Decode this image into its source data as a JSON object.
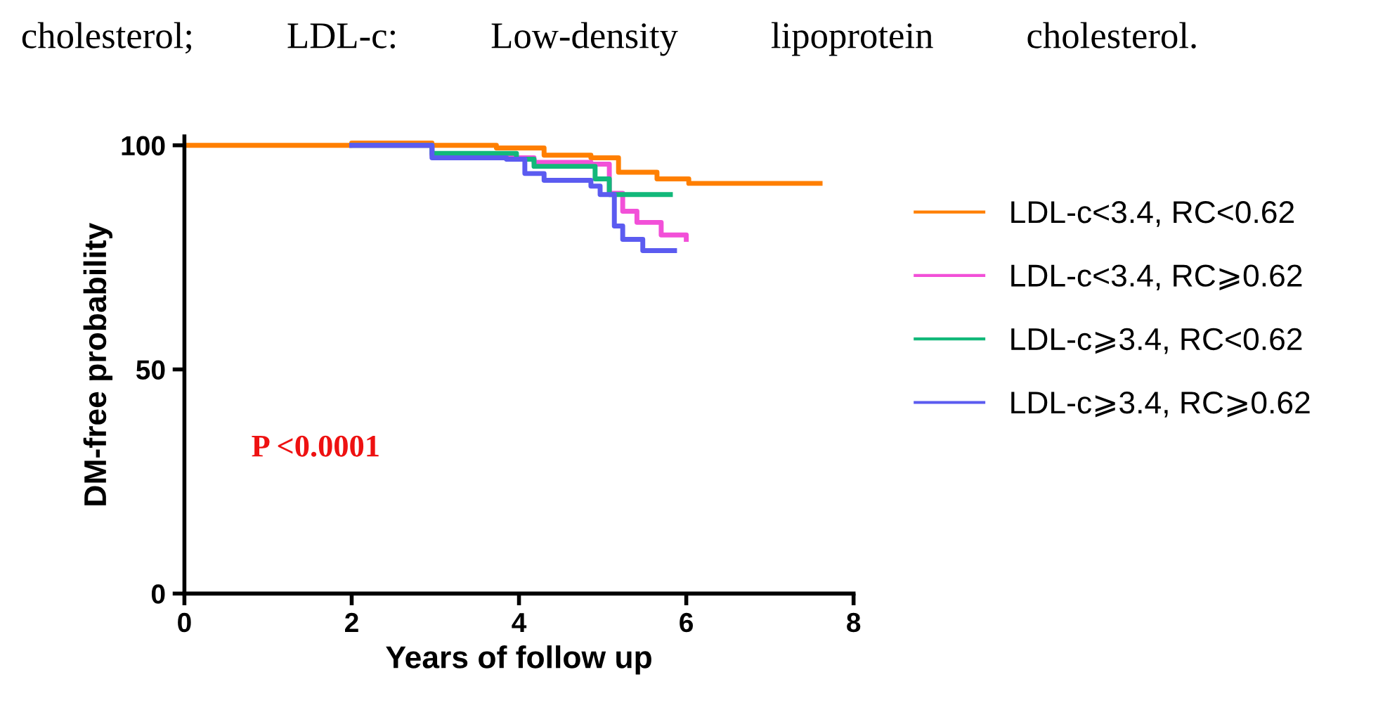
{
  "chart_data": {
    "type": "step",
    "xlabel": "Years of follow up",
    "ylabel": "DM-free probability",
    "annotations": [
      "cholesterol;          LDL-c:          Low-density          lipoprotein          cholesterol.",
      "P <0.0001"
    ],
    "series": [
      {
        "name": "LDL-c<3.4, RC<0.62",
        "color": "#ff7f00",
        "x": [
          0,
          2.0,
          2.96,
          3.73,
          4.3,
          4.86,
          5.19,
          5.65,
          6.03,
          7.6
        ],
        "values": [
          100,
          100.5,
          100,
          99.4,
          97.8,
          97.2,
          94,
          92.5,
          91.5,
          91.5
        ]
      },
      {
        "name": "LDL-c<3.4, RC⩾0.62",
        "color": "#f250d8",
        "x": [
          2.0,
          2.96,
          3.85,
          4.18,
          4.86,
          5.08,
          5.24,
          5.41,
          5.7,
          6.0
        ],
        "values": [
          100,
          97.8,
          97.2,
          96.2,
          95.8,
          89.3,
          85.3,
          82.8,
          80,
          79
        ]
      },
      {
        "name": "LDL-c⩾3.4, RC<0.62",
        "color": "#12b87a",
        "x": [
          2.0,
          2.96,
          3.97,
          4.18,
          4.91,
          5.08,
          5.81
        ],
        "values": [
          100,
          98.2,
          96.9,
          95.3,
          92.5,
          89,
          89
        ]
      },
      {
        "name": "LDL-c⩾3.4, RC⩾0.62",
        "color": "#5b5bf0",
        "x": [
          2.0,
          2.96,
          3.85,
          4.07,
          4.3,
          4.86,
          4.97,
          5.14,
          5.24,
          5.48,
          5.86
        ],
        "values": [
          100,
          97.2,
          96.9,
          93.7,
          92.2,
          90.9,
          89,
          82,
          79,
          76.5,
          76.5
        ]
      }
    ],
    "xlim": [
      0,
      8
    ],
    "xticks": [
      0,
      2,
      4,
      6,
      8
    ],
    "ylim": [
      0,
      102
    ],
    "yticks": [
      0,
      50,
      100
    ],
    "grid": false,
    "legend": "right",
    "line_style": "solid"
  }
}
